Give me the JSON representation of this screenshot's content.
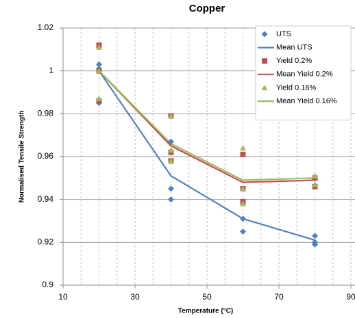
{
  "chart_data": {
    "type": "scatter",
    "title": "Copper",
    "xlabel": "Temperature (°C)",
    "ylabel": "Normalised Tensile Strength",
    "xlim": [
      10,
      90
    ],
    "xticks": [
      10,
      30,
      50,
      70,
      90
    ],
    "x_minor_ticks": [
      15,
      20,
      25,
      35,
      40,
      45,
      55,
      60,
      65,
      75,
      80,
      85
    ],
    "ylim": [
      0.9,
      1.02
    ],
    "yticks": [
      {
        "value": 0.9,
        "label": "0.9"
      },
      0.92,
      0.94,
      0.96,
      0.98,
      {
        "value": 1,
        "label": "1"
      },
      1.02
    ],
    "grid": true,
    "legend": "upper right",
    "series": [
      {
        "name": "UTS",
        "color": "#4f81bd",
        "marker": "diamond",
        "x": [
          20,
          20,
          20,
          40,
          40,
          40,
          60,
          60,
          80,
          80,
          80
        ],
        "values": [
          1.003,
          1.001,
          0.985,
          0.967,
          0.945,
          0.94,
          0.931,
          0.925,
          0.923,
          0.92,
          0.919
        ]
      },
      {
        "name": "Mean UTS",
        "color": "#4f81bd",
        "marker": "line",
        "x": [
          20,
          40,
          60,
          80
        ],
        "values": [
          1.0,
          0.951,
          0.931,
          0.921
        ]
      },
      {
        "name": "Yield 0.2%",
        "color": "#c0504d",
        "marker": "square",
        "x": [
          20,
          20,
          20,
          40,
          40,
          40,
          60,
          60,
          60,
          80,
          80
        ],
        "values": [
          1.012,
          1.0,
          0.986,
          0.979,
          0.962,
          0.958,
          0.961,
          0.945,
          0.939,
          0.95,
          0.946
        ]
      },
      {
        "name": "Mean Yield 0.2%",
        "color": "#c0504d",
        "marker": "line",
        "x": [
          20,
          40,
          60,
          80
        ],
        "values": [
          1.0,
          0.965,
          0.948,
          0.949
        ]
      },
      {
        "name": "Yield 0.16%",
        "color": "#9bbb59",
        "marker": "triangle",
        "x": [
          20,
          20,
          20,
          40,
          40,
          40,
          60,
          60,
          60,
          80,
          80
        ],
        "values": [
          1.011,
          1.0,
          0.987,
          0.979,
          0.963,
          0.958,
          0.964,
          0.945,
          0.938,
          0.951,
          0.947
        ]
      },
      {
        "name": "Mean Yield 0.16%",
        "color": "#9bbb59",
        "marker": "line",
        "x": [
          20,
          40,
          60,
          80
        ],
        "values": [
          1.0,
          0.966,
          0.949,
          0.95
        ]
      }
    ]
  }
}
